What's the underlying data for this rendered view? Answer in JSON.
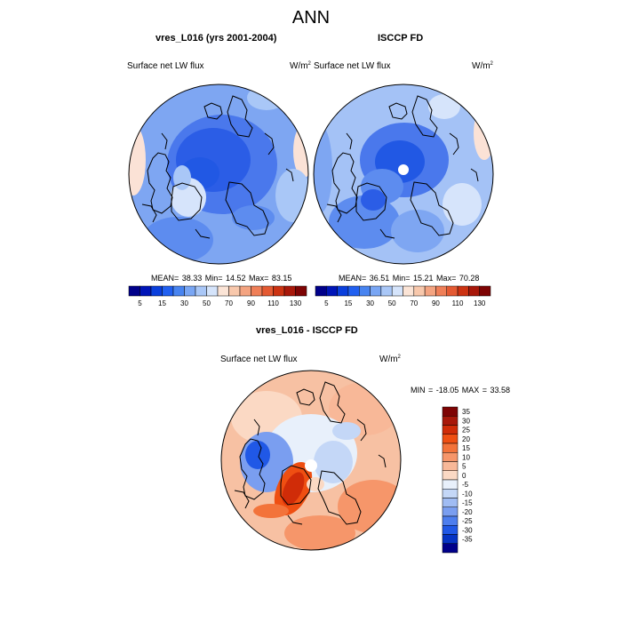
{
  "figure": {
    "title": "ANN",
    "field_label": "Surface net LW flux",
    "units_base": "W/m",
    "units_exp": "2"
  },
  "panels": [
    {
      "title": "vres_L016 (yrs 2001-2004)",
      "stats": "MEAN=  38.33  Min=  14.52  Max=  83.15"
    },
    {
      "title": "ISCCP FD",
      "stats": "MEAN=  36.51  Min=  15.21  Max=  70.28"
    },
    {
      "title": "vres_L016 - ISCCP FD",
      "stats": "MIN = -18.05 MAX =  33.58"
    }
  ],
  "colorbar_top": {
    "labels": [
      "5",
      "15",
      "30",
      "50",
      "70",
      "90",
      "110",
      "130"
    ],
    "colors": [
      "#00008a",
      "#0015b8",
      "#0a3fdc",
      "#2160f0",
      "#4884f0",
      "#79a6f4",
      "#a9c7f7",
      "#d5e4fb",
      "#fbe4d6",
      "#f8c8ac",
      "#f4a481",
      "#ef7f58",
      "#e45a33",
      "#cc3312",
      "#a8180a",
      "#7e0404"
    ]
  },
  "colorbar_diff": {
    "labels": [
      "35",
      "30",
      "25",
      "20",
      "15",
      "10",
      "5",
      "0",
      "-5",
      "-10",
      "-15",
      "-20",
      "-25",
      "-30",
      "-35"
    ],
    "colors": [
      "#7e0404",
      "#a8180a",
      "#d02c08",
      "#ef4f12",
      "#f3733a",
      "#f6966a",
      "#f8b898",
      "#fbd9c4",
      "#e8f0fb",
      "#c4d7f7",
      "#a0bcf3",
      "#7a9ef0",
      "#4d7eee",
      "#2058e6",
      "#0634c4",
      "#00008a"
    ]
  }
}
